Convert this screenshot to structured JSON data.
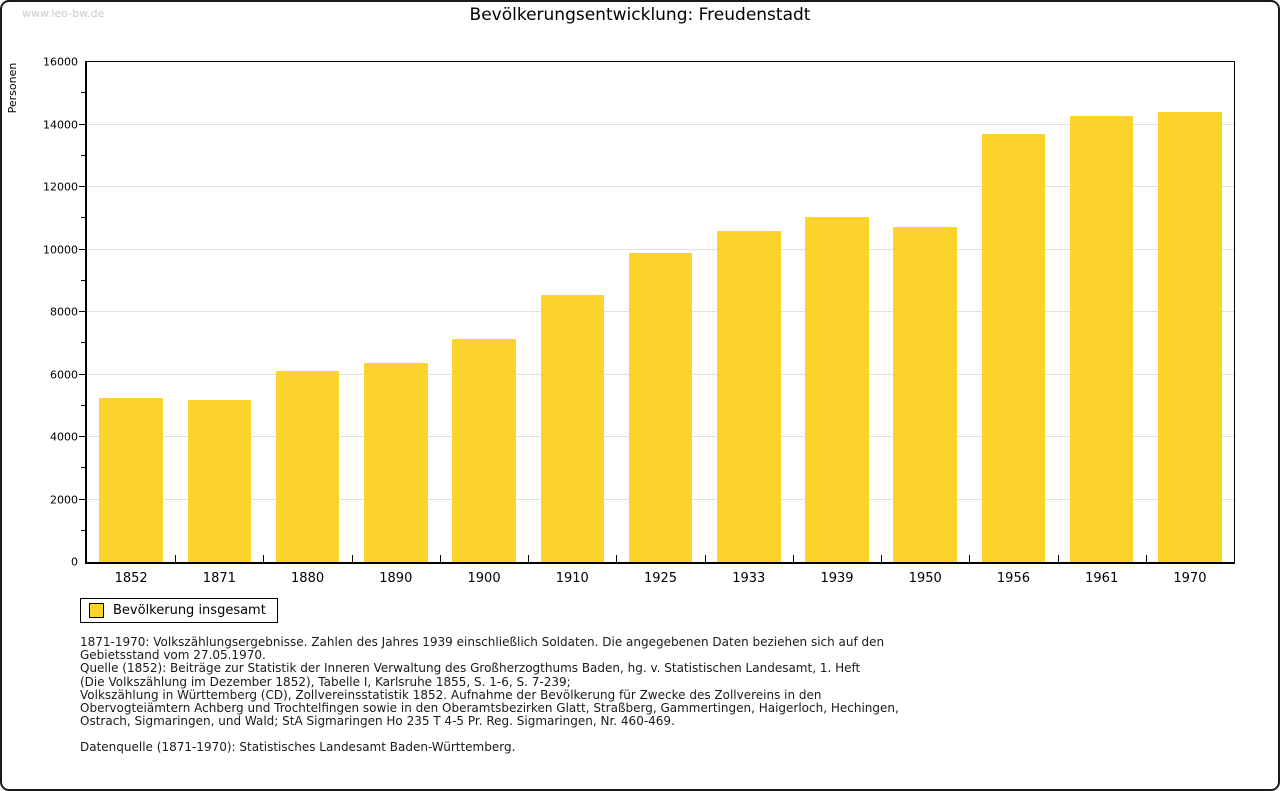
{
  "watermark": "www.leo-bw.de",
  "title": "Bevölkerungsentwicklung: Freudenstadt",
  "colors": {
    "bar": "#fcd32b",
    "grid": "#e0e0e0",
    "axis": "#000000",
    "watermark": "#cccccc"
  },
  "chart_data": {
    "type": "bar",
    "title": "Bevölkerungsentwicklung: Freudenstadt",
    "series_name": "Bevölkerung insgesamt",
    "categories": [
      "1852",
      "1871",
      "1880",
      "1890",
      "1900",
      "1910",
      "1925",
      "1933",
      "1939",
      "1950",
      "1956",
      "1961",
      "1970"
    ],
    "values": [
      5250,
      5180,
      6110,
      6370,
      7140,
      8540,
      9890,
      10580,
      11040,
      10720,
      13690,
      14270,
      14400
    ],
    "xlabel": "",
    "ylabel": "Personen",
    "ylim": [
      0,
      16000
    ],
    "ytick_major_step": 2000,
    "ytick_minor_step": 1000,
    "grid": true,
    "legend_position": "bottom-left"
  },
  "legend": {
    "label": "Bevölkerung insgesamt"
  },
  "footnotes": [
    "1871-1970: Volkszählungsergebnisse. Zahlen des Jahres 1939 einschließlich Soldaten. Die angegebenen Daten beziehen sich auf den",
    "Gebietsstand vom 27.05.1970.",
    "Quelle (1852): Beiträge zur Statistik der Inneren Verwaltung des Großherzogthums Baden, hg. v. Statistischen Landesamt, 1. Heft",
    "(Die Volkszählung im Dezember 1852), Tabelle I, Karlsruhe 1855, S. 1-6, S. 7-239;",
    "Volkszählung in Württemberg (CD), Zollvereinsstatistik 1852. Aufnahme der Bevölkerung für Zwecke des Zollvereins in den",
    "Obervogteiämtern Achberg und Trochtelfingen sowie in den Oberamtsbezirken Glatt, Straßberg, Gammertingen, Haigerloch, Hechingen,",
    "Ostrach, Sigmaringen, und Wald; StA Sigmaringen Ho 235 T 4-5 Pr. Reg. Sigmaringen, Nr. 460-469."
  ],
  "datasource": "Datenquelle (1871-1970): Statistisches Landesamt Baden-Württemberg."
}
